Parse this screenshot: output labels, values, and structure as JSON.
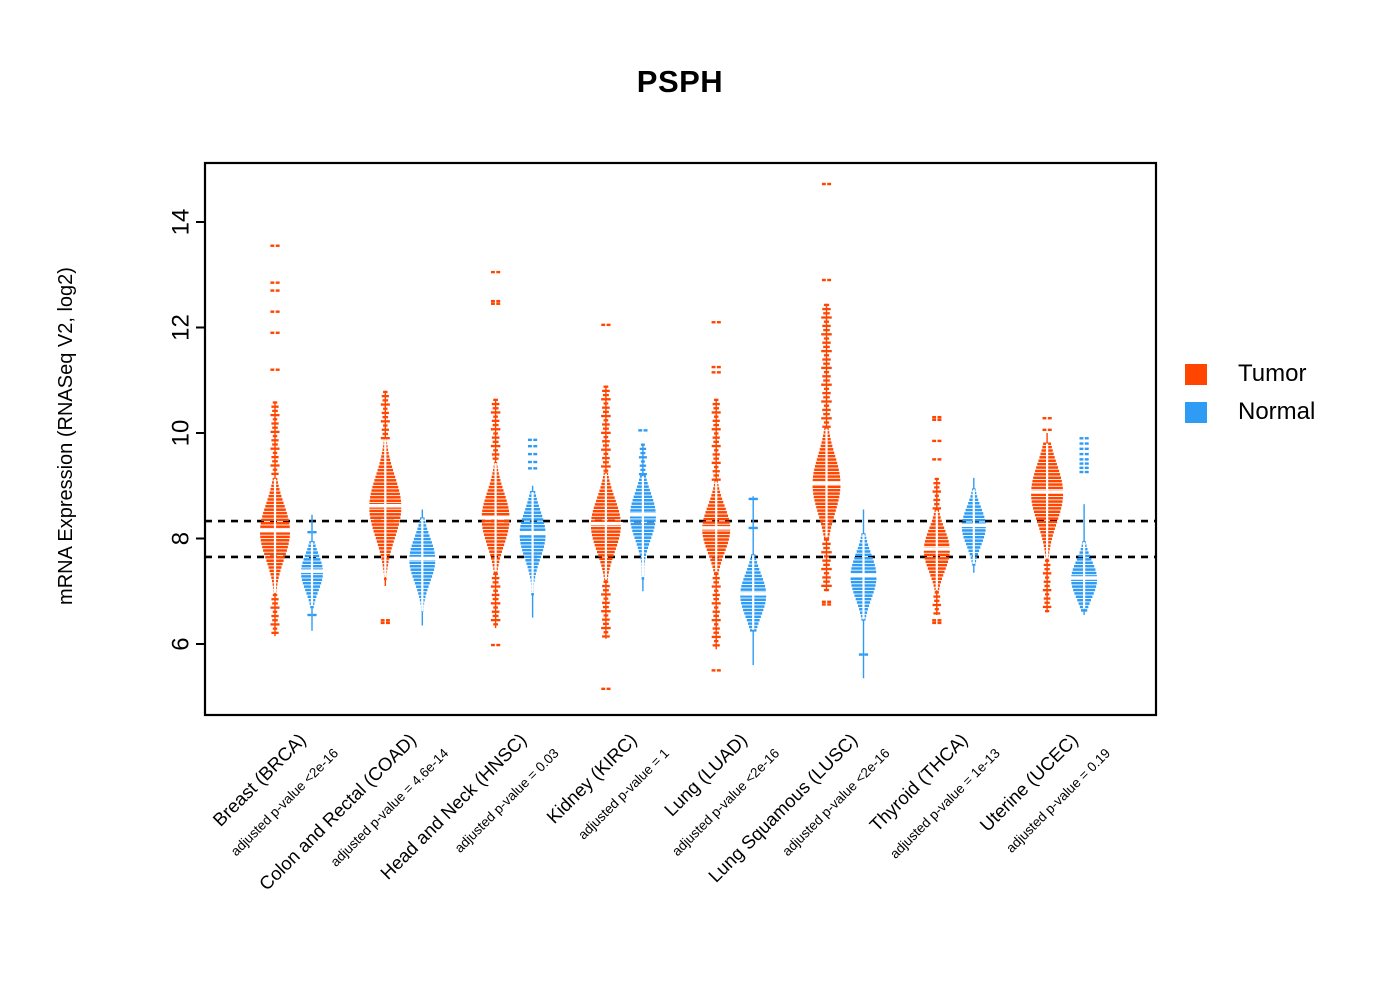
{
  "title": "PSPH",
  "y_axis": {
    "label": "mRNA Expression (RNASeq V2, log2)",
    "ticks": [
      6,
      8,
      10,
      12,
      14
    ]
  },
  "legend": {
    "items": [
      {
        "label": "Tumor",
        "color": "#FF4500"
      },
      {
        "label": "Normal",
        "color": "#2E9BF5"
      }
    ]
  },
  "chart_data": {
    "type": "violin",
    "title": "PSPH",
    "ylabel": "mRNA Expression (RNASeq V2, log2)",
    "ylim": [
      4.6,
      15.1
    ],
    "yticks": [
      6,
      8,
      10,
      12,
      14
    ],
    "grid": false,
    "legend_position": "right",
    "reference_lines": {
      "style": "dashed",
      "values": [
        8.33,
        7.65
      ]
    },
    "series_colors": {
      "Tumor": "#FF4500",
      "Normal": "#2E9BF5"
    },
    "groups": [
      {
        "label": "Breast (BRCA)",
        "p_label": "adjusted p-value <2e-16",
        "tumor": {
          "m": 8.15,
          "sd": 0.52,
          "lo": 6.95,
          "hi": 9.15,
          "tlo": 6.15,
          "thi": 10.6,
          "hw": 15,
          "thw": 3.6,
          "ut": "d",
          "lt": "d",
          "oh": [
            13.55,
            12.85,
            12.7,
            12.3,
            11.9,
            11.2
          ],
          "ol": []
        },
        "normal": {
          "m": 7.38,
          "sd": 0.34,
          "lo": 6.7,
          "hi": 7.95,
          "tlo": 6.25,
          "thi": 8.45,
          "hw": 11,
          "ut": "l",
          "lt": "l",
          "oh": [
            8.12
          ],
          "ol": [
            6.55
          ]
        }
      },
      {
        "label": "Colon and Rectal (COAD)",
        "p_label": "adjusted p-value = 4.6e-14",
        "tumor": {
          "m": 8.62,
          "sd": 0.58,
          "lo": 7.25,
          "hi": 9.9,
          "tlo": 7.1,
          "thi": 10.8,
          "hw": 16,
          "thw": 3.6,
          "ut": "d",
          "lt": "l",
          "oh": [],
          "ol": [
            6.45,
            6.4
          ]
        },
        "normal": {
          "m": 7.62,
          "sd": 0.42,
          "lo": 6.6,
          "hi": 8.4,
          "tlo": 6.35,
          "thi": 8.55,
          "hw": 13,
          "ut": "l",
          "lt": "l",
          "oh": [],
          "ol": []
        }
      },
      {
        "label": "Head and Neck (HNSC)",
        "p_label": "adjusted p-value = 0.03",
        "tumor": {
          "m": 8.4,
          "sd": 0.5,
          "lo": 7.35,
          "hi": 9.45,
          "tlo": 6.3,
          "thi": 10.65,
          "hw": 14,
          "thw": 3.8,
          "ut": "d",
          "lt": "d",
          "oh": [
            13.05,
            12.5,
            12.45
          ],
          "ol": [
            5.98
          ]
        },
        "normal": {
          "m": 8.1,
          "sd": 0.45,
          "lo": 6.95,
          "hi": 8.9,
          "tlo": 6.5,
          "thi": 9.0,
          "hw": 13,
          "ut": "l",
          "lt": "l",
          "oh": [
            9.87,
            9.75,
            9.6,
            9.45,
            9.33
          ],
          "ol": []
        }
      },
      {
        "label": "Kidney (KIRC)",
        "p_label": "adjusted p-value = 1",
        "tumor": {
          "m": 8.28,
          "sd": 0.5,
          "lo": 7.2,
          "hi": 9.25,
          "tlo": 6.1,
          "thi": 10.9,
          "hw": 15,
          "thw": 3.8,
          "ut": "d",
          "lt": "d",
          "oh": [
            12.05
          ],
          "ol": [
            5.15
          ]
        },
        "normal": {
          "m": 8.45,
          "sd": 0.44,
          "lo": 7.25,
          "hi": 9.2,
          "tlo": 7.0,
          "thi": 9.8,
          "hw": 13,
          "ut": "d",
          "lt": "l",
          "oh": [
            10.05
          ],
          "ol": []
        }
      },
      {
        "label": "Lung (LUAD)",
        "p_label": "adjusted p-value <2e-16",
        "tumor": {
          "m": 8.2,
          "sd": 0.44,
          "lo": 7.35,
          "hi": 9.1,
          "tlo": 5.9,
          "thi": 10.65,
          "hw": 14,
          "thw": 3.6,
          "ut": "d",
          "lt": "d",
          "oh": [
            12.1,
            11.25,
            11.15
          ],
          "ol": [
            5.5
          ]
        },
        "normal": {
          "m": 6.95,
          "sd": 0.4,
          "lo": 6.25,
          "hi": 7.7,
          "tlo": 5.6,
          "thi": 8.8,
          "hw": 13,
          "ut": "l",
          "lt": "l",
          "oh": [
            8.75,
            8.2
          ],
          "ol": []
        }
      },
      {
        "label": "Lung Squamous (LUSC)",
        "p_label": "adjusted p-value <2e-16",
        "tumor": {
          "m": 9.05,
          "sd": 0.55,
          "lo": 8.0,
          "hi": 10.1,
          "tlo": 7.0,
          "thi": 12.45,
          "hw": 14,
          "thw": 4.2,
          "ut": "d",
          "lt": "d",
          "oh": [
            14.72,
            12.9
          ],
          "ol": [
            6.8,
            6.75
          ]
        },
        "normal": {
          "m": 7.3,
          "sd": 0.42,
          "lo": 6.45,
          "hi": 8.1,
          "tlo": 5.35,
          "thi": 8.55,
          "hw": 13,
          "ut": "l",
          "lt": "l",
          "oh": [],
          "ol": [
            5.8
          ]
        }
      },
      {
        "label": "Thyroid (THCA)",
        "p_label": "adjusted p-value = 1e-13",
        "tumor": {
          "m": 7.8,
          "sd": 0.4,
          "lo": 7.0,
          "hi": 8.55,
          "tlo": 6.55,
          "thi": 9.15,
          "hw": 13,
          "thw": 3.4,
          "ut": "d",
          "lt": "d",
          "oh": [
            10.3,
            10.25,
            9.85,
            9.5
          ],
          "ol": [
            6.45,
            6.4
          ]
        },
        "normal": {
          "m": 8.25,
          "sd": 0.36,
          "lo": 7.5,
          "hi": 8.95,
          "tlo": 7.35,
          "thi": 9.15,
          "hw": 12,
          "ut": "l",
          "lt": "l",
          "oh": [],
          "ol": []
        }
      },
      {
        "label": "Uterine (UCEC)",
        "p_label": "adjusted p-value = 0.19",
        "tumor": {
          "m": 8.88,
          "sd": 0.56,
          "lo": 7.6,
          "hi": 9.82,
          "tlo": 6.6,
          "thi": 10.0,
          "hw": 16,
          "thw": 3.4,
          "ut": "l",
          "lt": "d",
          "oh": [
            10.28,
            10.06
          ],
          "ol": []
        },
        "normal": {
          "m": 7.25,
          "sd": 0.35,
          "lo": 6.65,
          "hi": 7.95,
          "tlo": 6.55,
          "thi": 8.65,
          "hw": 13,
          "ut": "l",
          "lt": "l",
          "oh": [
            9.9,
            9.8,
            9.7,
            9.6,
            9.5,
            9.42,
            9.34,
            9.26
          ],
          "ol": []
        }
      }
    ]
  }
}
